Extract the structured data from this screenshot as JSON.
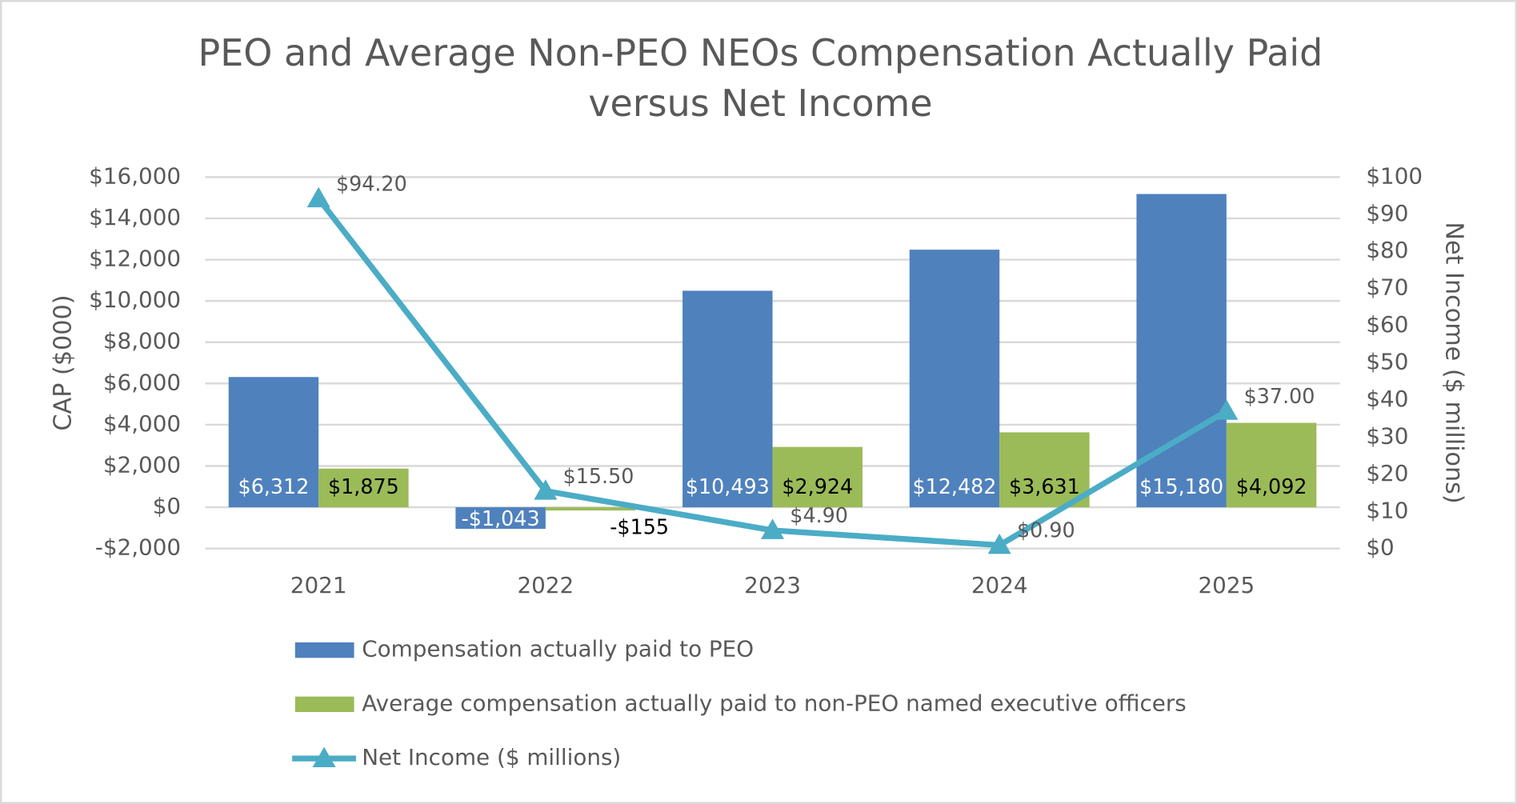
{
  "chart_data": {
    "type": "bar",
    "title": "PEO and Average Non-PEO NEOs Compensation Actually Paid versus Net Income",
    "y_label": "CAP ($000)",
    "y2_label": "Net Income ($ millions)",
    "categories": [
      "2021",
      "2022",
      "2023",
      "2024",
      "2025"
    ],
    "series": [
      {
        "name": "Compensation actually paid to PEO",
        "color": "#4f81bd",
        "type": "bar",
        "values": [
          6312,
          -1043,
          10493,
          12482,
          15180
        ],
        "value_labels": [
          "$6,312",
          "-$1,043",
          "$10,493",
          "$12,482",
          "$15,180"
        ]
      },
      {
        "name": "Average compensation actually paid to non-PEO named executive officers",
        "color": "#9bbb59",
        "type": "bar",
        "values": [
          1875,
          -155,
          2924,
          3631,
          4092
        ],
        "value_labels": [
          "$1,875",
          "-$155",
          "$2,924",
          "$3,631",
          "$4,092"
        ]
      },
      {
        "name": "Net Income ($ millions)",
        "color": "#4bacc6",
        "type": "line",
        "axis": "y2",
        "values": [
          94.2,
          15.5,
          4.9,
          0.9,
          37.0
        ],
        "value_labels": [
          "$94.20",
          "$15.50",
          "$4.90",
          "$0.90",
          "$37.00"
        ]
      }
    ],
    "ylim": [
      -2000,
      16000
    ],
    "yticks": [
      {
        "value": -2000,
        "label": "-$2,000"
      },
      {
        "value": 0,
        "label": "$0"
      },
      {
        "value": 2000,
        "label": "$2,000"
      },
      {
        "value": 4000,
        "label": "$4,000"
      },
      {
        "value": 6000,
        "label": "$6,000"
      },
      {
        "value": 8000,
        "label": "$8,000"
      },
      {
        "value": 10000,
        "label": "$10,000"
      },
      {
        "value": 12000,
        "label": "$12,000"
      },
      {
        "value": 14000,
        "label": "$14,000"
      },
      {
        "value": 16000,
        "label": "$16,000"
      }
    ],
    "y2lim": [
      0,
      100
    ],
    "y2ticks": [
      {
        "value": 0,
        "label": "$0"
      },
      {
        "value": 10,
        "label": "$10"
      },
      {
        "value": 20,
        "label": "$20"
      },
      {
        "value": 30,
        "label": "$30"
      },
      {
        "value": 40,
        "label": "$40"
      },
      {
        "value": 50,
        "label": "$50"
      },
      {
        "value": 60,
        "label": "$60"
      },
      {
        "value": 70,
        "label": "$70"
      },
      {
        "value": 80,
        "label": "$80"
      },
      {
        "value": 90,
        "label": "$90"
      },
      {
        "value": 100,
        "label": "$100"
      }
    ],
    "grid": true
  }
}
